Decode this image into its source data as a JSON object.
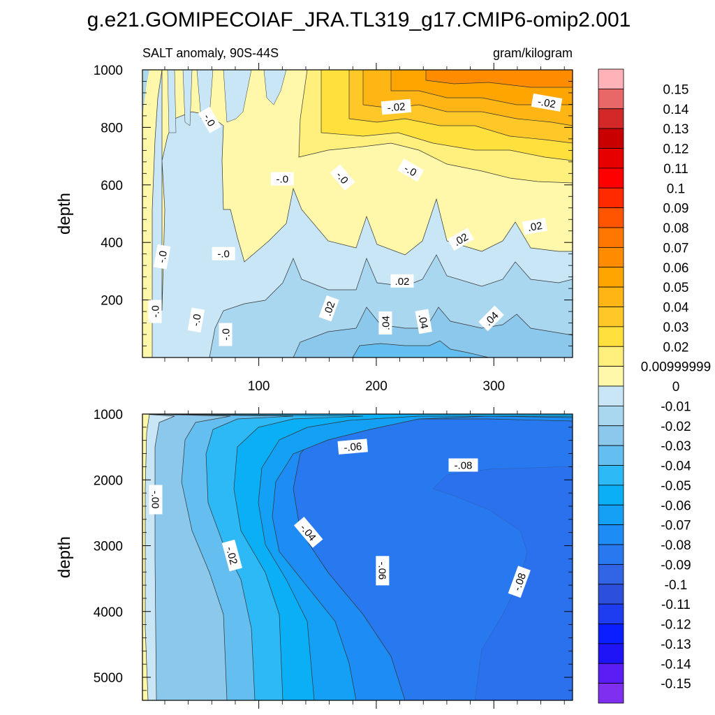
{
  "title": "g.e21.GOMIPECOIAF_JRA.TL319_g17.CMIP6-omip2.001",
  "chart_data": {
    "type": "contour",
    "variable_label": "SALT anomaly, 90S-44S",
    "units_label": "gram/kilogram",
    "ylabel": "depth",
    "top_panel": {
      "ylim": [
        1000,
        0
      ],
      "y_ticks": [
        200,
        400,
        600,
        800,
        1000
      ],
      "xlim": [
        1,
        367
      ],
      "x_ticks": [
        100,
        200,
        300
      ],
      "contour_labels": [
        {
          "text": "-.0",
          "x": 72,
          "y": 80,
          "rot": -90
        },
        {
          "text": "-.0",
          "x": 47,
          "y": 130,
          "rot": -80
        },
        {
          "text": "-.0",
          "x": 12,
          "y": 160,
          "rot": -90
        },
        {
          "text": "-.0",
          "x": 18,
          "y": 350,
          "rot": -80
        },
        {
          "text": "-.0",
          "x": 70,
          "y": 360,
          "rot": 0
        },
        {
          "text": ".02",
          "x": 160,
          "y": 170,
          "rot": -70
        },
        {
          "text": ".04",
          "x": 208,
          "y": 120,
          "rot": -90
        },
        {
          "text": ".04",
          "x": 240,
          "y": 125,
          "rot": 80
        },
        {
          "text": ".04",
          "x": 298,
          "y": 135,
          "rot": -45
        },
        {
          "text": ".02",
          "x": 222,
          "y": 265,
          "rot": 0
        },
        {
          "text": ".02",
          "x": 272,
          "y": 410,
          "rot": -30
        },
        {
          "text": ".02",
          "x": 335,
          "y": 455,
          "rot": -10
        },
        {
          "text": "-.0",
          "x": 120,
          "y": 620,
          "rot": 0
        },
        {
          "text": "-.0",
          "x": 171,
          "y": 625,
          "rot": 50
        },
        {
          "text": "-.0",
          "x": 229,
          "y": 650,
          "rot": 30
        },
        {
          "text": "-.0",
          "x": 58,
          "y": 825,
          "rot": 60
        },
        {
          "text": "-.02",
          "x": 217,
          "y": 870,
          "rot": -5
        },
        {
          "text": "-.02",
          "x": 345,
          "y": 885,
          "rot": 10
        }
      ]
    },
    "bottom_panel": {
      "ylim": [
        1000,
        5350
      ],
      "y_ticks": [
        1000,
        2000,
        3000,
        4000,
        5000
      ],
      "contour_labels": [
        {
          "text": "-.00",
          "x": 12,
          "y": 2300,
          "rot": 90
        },
        {
          "text": "-.02",
          "x": 77,
          "y": 3150,
          "rot": 75
        },
        {
          "text": "-.04",
          "x": 142,
          "y": 2800,
          "rot": 50
        },
        {
          "text": "-.06",
          "x": 180,
          "y": 1500,
          "rot": -5
        },
        {
          "text": "-.06",
          "x": 205,
          "y": 3380,
          "rot": 90
        },
        {
          "text": "-.08",
          "x": 274,
          "y": 1780,
          "rot": 0
        },
        {
          "text": "-.08",
          "x": 322,
          "y": 3550,
          "rot": -70
        }
      ]
    },
    "colorbar": {
      "labels": [
        "0.15",
        "0.14",
        "0.13",
        "0.12",
        "0.11",
        "0.1",
        "0.09",
        "0.08",
        "0.07",
        "0.06",
        "0.05",
        "0.04",
        "0.03",
        "0.02",
        "0.00999999",
        "0",
        "-0.01",
        "-0.02",
        "-0.03",
        "-0.04",
        "-0.05",
        "-0.06",
        "-0.07",
        "-0.08",
        "-0.09",
        "-0.1",
        "-0.11",
        "-0.12",
        "-0.13",
        "-0.14",
        "-0.15"
      ],
      "colors": [
        "#FFB3B8",
        "#E86868",
        "#D22828",
        "#C80000",
        "#E60000",
        "#FF0000",
        "#FF2A00",
        "#FF5500",
        "#FF7700",
        "#FF8C00",
        "#FFA500",
        "#FFB614",
        "#FFC828",
        "#FFE03C",
        "#FFF07D",
        "#FFF8AA",
        "#C8E6F5",
        "#AAD7F0",
        "#8CC8EC",
        "#64BEF0",
        "#2DB9F5",
        "#0AAFF5",
        "#14A0F5",
        "#1E8CF5",
        "#2878F0",
        "#3264E6",
        "#2D50DC",
        "#1E3CF0",
        "#0A1EFF",
        "#1E14F5",
        "#5A1EF5",
        "#7F2FF0"
      ]
    }
  }
}
